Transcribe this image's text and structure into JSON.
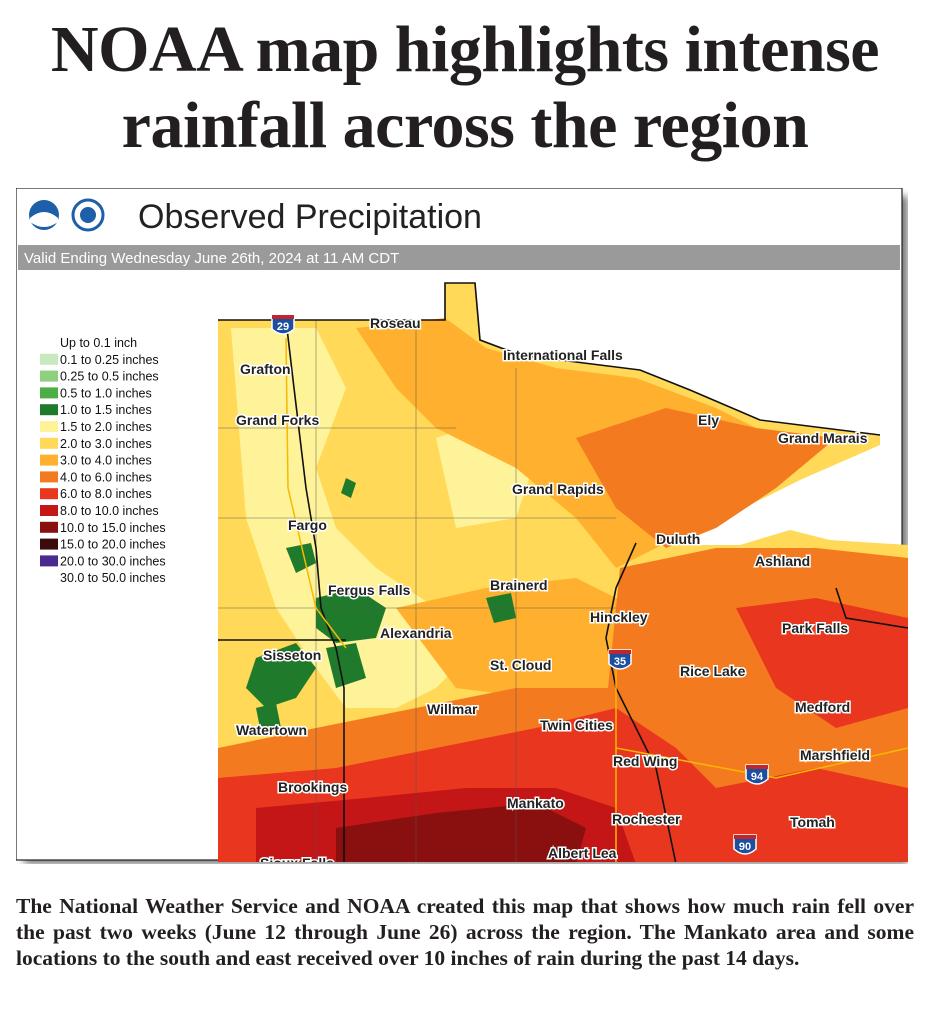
{
  "headline": "NOAA map highlights intense rainfall across the region",
  "map": {
    "title": "Observed Precipitation",
    "valid": "Valid Ending Wednesday June 26th, 2024 at 11 AM CDT",
    "legend": [
      {
        "label": "Up to 0.1 inch"
      },
      {
        "label": "0.1 to 0.25 inches",
        "color": "#c8e8c0"
      },
      {
        "label": "0.25 to 0.5 inches",
        "color": "#8fd07f"
      },
      {
        "label": "0.5 to 1.0 inches",
        "color": "#4cae44"
      },
      {
        "label": "1.0 to 1.5 inches",
        "color": "#1f7a2c"
      },
      {
        "label": "1.5 to 2.0 inches",
        "color": "#fff39a"
      },
      {
        "label": "2.0 to 3.0 inches",
        "color": "#ffd957"
      },
      {
        "label": "3.0 to 4.0 inches",
        "color": "#ffb02e"
      },
      {
        "label": "4.0 to 6.0 inches",
        "color": "#f47a20"
      },
      {
        "label": "6.0 to 8.0 inches",
        "color": "#e8361f"
      },
      {
        "label": "8.0 to 10.0 inches",
        "color": "#c41616"
      },
      {
        "label": "10.0 to 15.0 inches",
        "color": "#8a1010"
      },
      {
        "label": "15.0 to 20.0 inches",
        "color": "#3a0c0c"
      },
      {
        "label": "20.0 to 30.0 inches",
        "color": "#4b2a90"
      },
      {
        "label": "30.0 to 50.0 inches"
      }
    ],
    "cities": [
      "Roseau",
      "International Falls",
      "Grafton",
      "Grand Forks",
      "Ely",
      "Grand Marais",
      "Grand Rapids",
      "Fargo",
      "Duluth",
      "Ashland",
      "Fergus Falls",
      "Brainerd",
      "Hinckley",
      "Alexandria",
      "Park Falls",
      "Sisseton",
      "St. Cloud",
      "Rice Lake",
      "Willmar",
      "Medford",
      "Twin Cities",
      "Watertown",
      "Red Wing",
      "Marshfield",
      "Brookings",
      "Mankato",
      "Rochester",
      "Tomah",
      "Albert Lea",
      "Sioux Falls"
    ],
    "interstates": [
      "29",
      "35",
      "94",
      "90"
    ]
  },
  "caption": "The National Weather Service and NOAA created this map that shows how much rain fell over the past two weeks (June 12 through June 26) across the region.  The Mankato area and some locations to the south and east received over 10 inches of rain during the past 14 days."
}
